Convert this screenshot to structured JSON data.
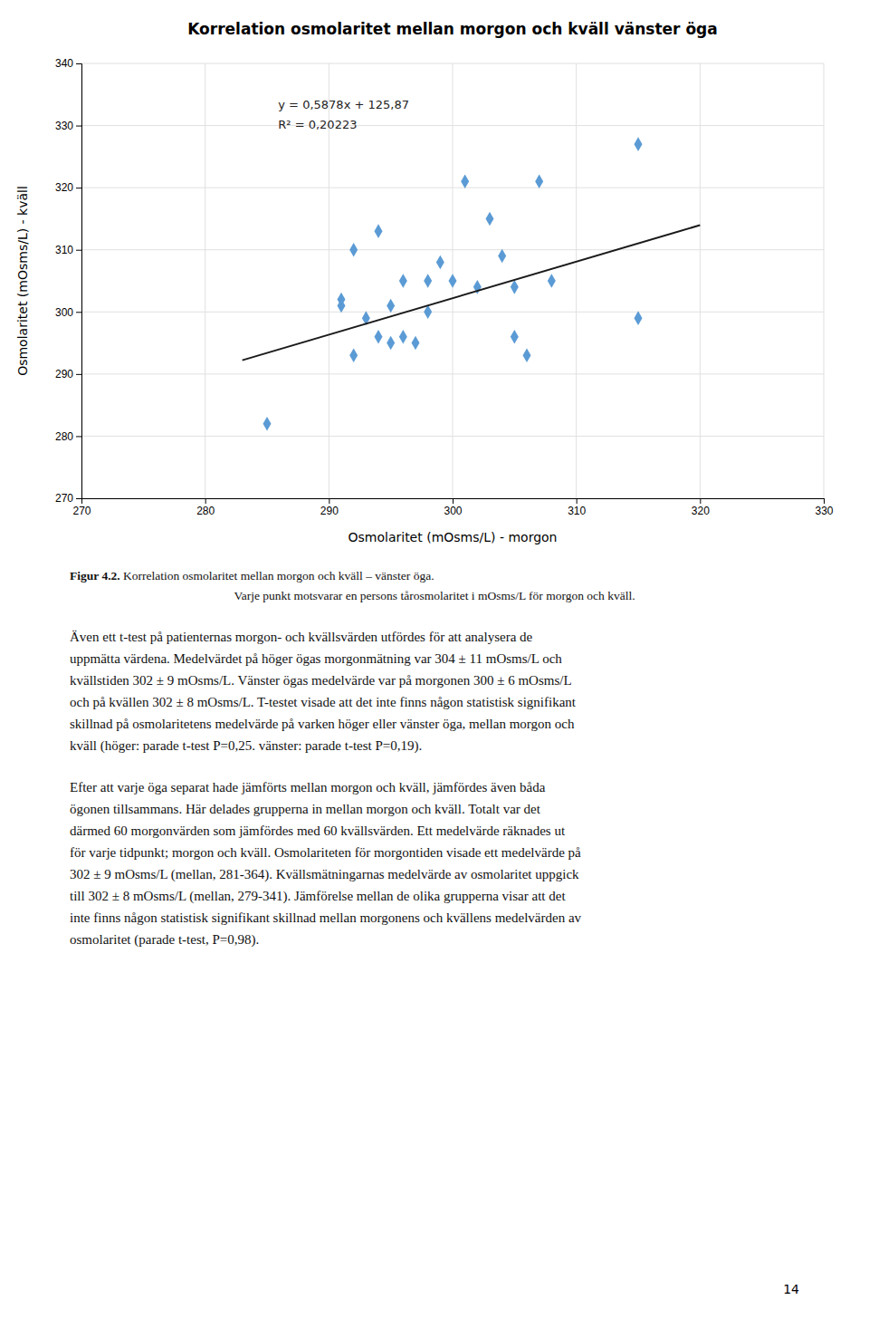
{
  "chart_data": {
    "type": "scatter",
    "title": "Korrelation osmolaritet mellan morgon och kväll vänster öga",
    "xlabel": "Osmolaritet (mOsms/L) - morgon",
    "ylabel": "Osmolaritet (mOsms/L) - kväll",
    "series": [
      {
        "type": "scatter",
        "color": "#5B9BD5",
        "marker": "diamond",
        "x": [
          285,
          291,
          291,
          292,
          292,
          293,
          294,
          294,
          295,
          295,
          296,
          296,
          297,
          298,
          298,
          299,
          300,
          301,
          302,
          303,
          304,
          305,
          305,
          306,
          307,
          308,
          315,
          315
        ],
        "values": [
          282,
          301,
          302,
          293,
          310,
          299,
          296,
          313,
          295,
          301,
          296,
          305,
          295,
          300,
          305,
          308,
          305,
          321,
          304,
          315,
          309,
          296,
          304,
          293,
          321,
          305,
          299,
          327
        ]
      },
      {
        "type": "line",
        "color": "#1a1a1a",
        "line_style": "solid",
        "x": [
          283,
          320
        ],
        "values": [
          292.2174,
          313.966
        ]
      }
    ],
    "annotations": [
      "y = 0,5878x + 125,87",
      "R² = 0,20223"
    ],
    "xlim": [
      270,
      330
    ],
    "ylim": [
      270,
      340
    ],
    "xticks": [
      270,
      280,
      290,
      300,
      310,
      320,
      330
    ],
    "yticks": [
      270,
      280,
      290,
      300,
      310,
      320,
      330,
      340
    ],
    "grid": true
  },
  "caption": {
    "label": "Figur 4.2.",
    "lines": [
      " Korrelation osmolaritet mellan morgon och kväll – vänster öga.",
      "Varje punkt motsvarar en persons tårosmolaritet i mOsms/L för morgon och kväll."
    ]
  },
  "paragraphs": [
    [
      "Även ett t-test på patienternas morgon- och kvällsvärden utfördes för att analysera de",
      "uppmätta värdena. Medelvärdet på höger ögas morgonmätning var 304 ± 11 mOsms/L och",
      "kvällstiden 302 ± 9 mOsms/L. Vänster ögas medelvärde var på morgonen 300 ± 6 mOsms/L",
      "och på kvällen 302 ± 8 mOsms/L. T-testet visade att det inte finns någon statistisk signifikant",
      "skillnad på osmolaritetens medelvärde på varken höger eller vänster öga, mellan morgon och",
      "kväll (höger: parade t-test P=0,25. vänster: parade t-test P=0,19)."
    ],
    [
      "Efter att varje öga separat hade jämförts mellan morgon och kväll, jämfördes även båda",
      "ögonen tillsammans. Här delades grupperna in mellan morgon och kväll. Totalt var det",
      "därmed 60 morgonvärden som jämfördes med 60 kvällsvärden. Ett medelvärde räknades ut",
      "för varje tidpunkt; morgon och kväll. Osmolariteten för morgontiden visade ett medelvärde på",
      "302 ± 9 mOsms/L (mellan, 281-364). Kvällsmätningarnas medelvärde av osmolaritet uppgick",
      "till 302 ± 8 mOsms/L (mellan, 279-341). Jämförelse mellan de olika grupperna visar att det",
      "inte finns någon statistisk signifikant skillnad mellan morgonens och kvällens medelvärden av",
      "osmolaritet (parade t-test, P=0,98)."
    ]
  ],
  "page_number": "14"
}
